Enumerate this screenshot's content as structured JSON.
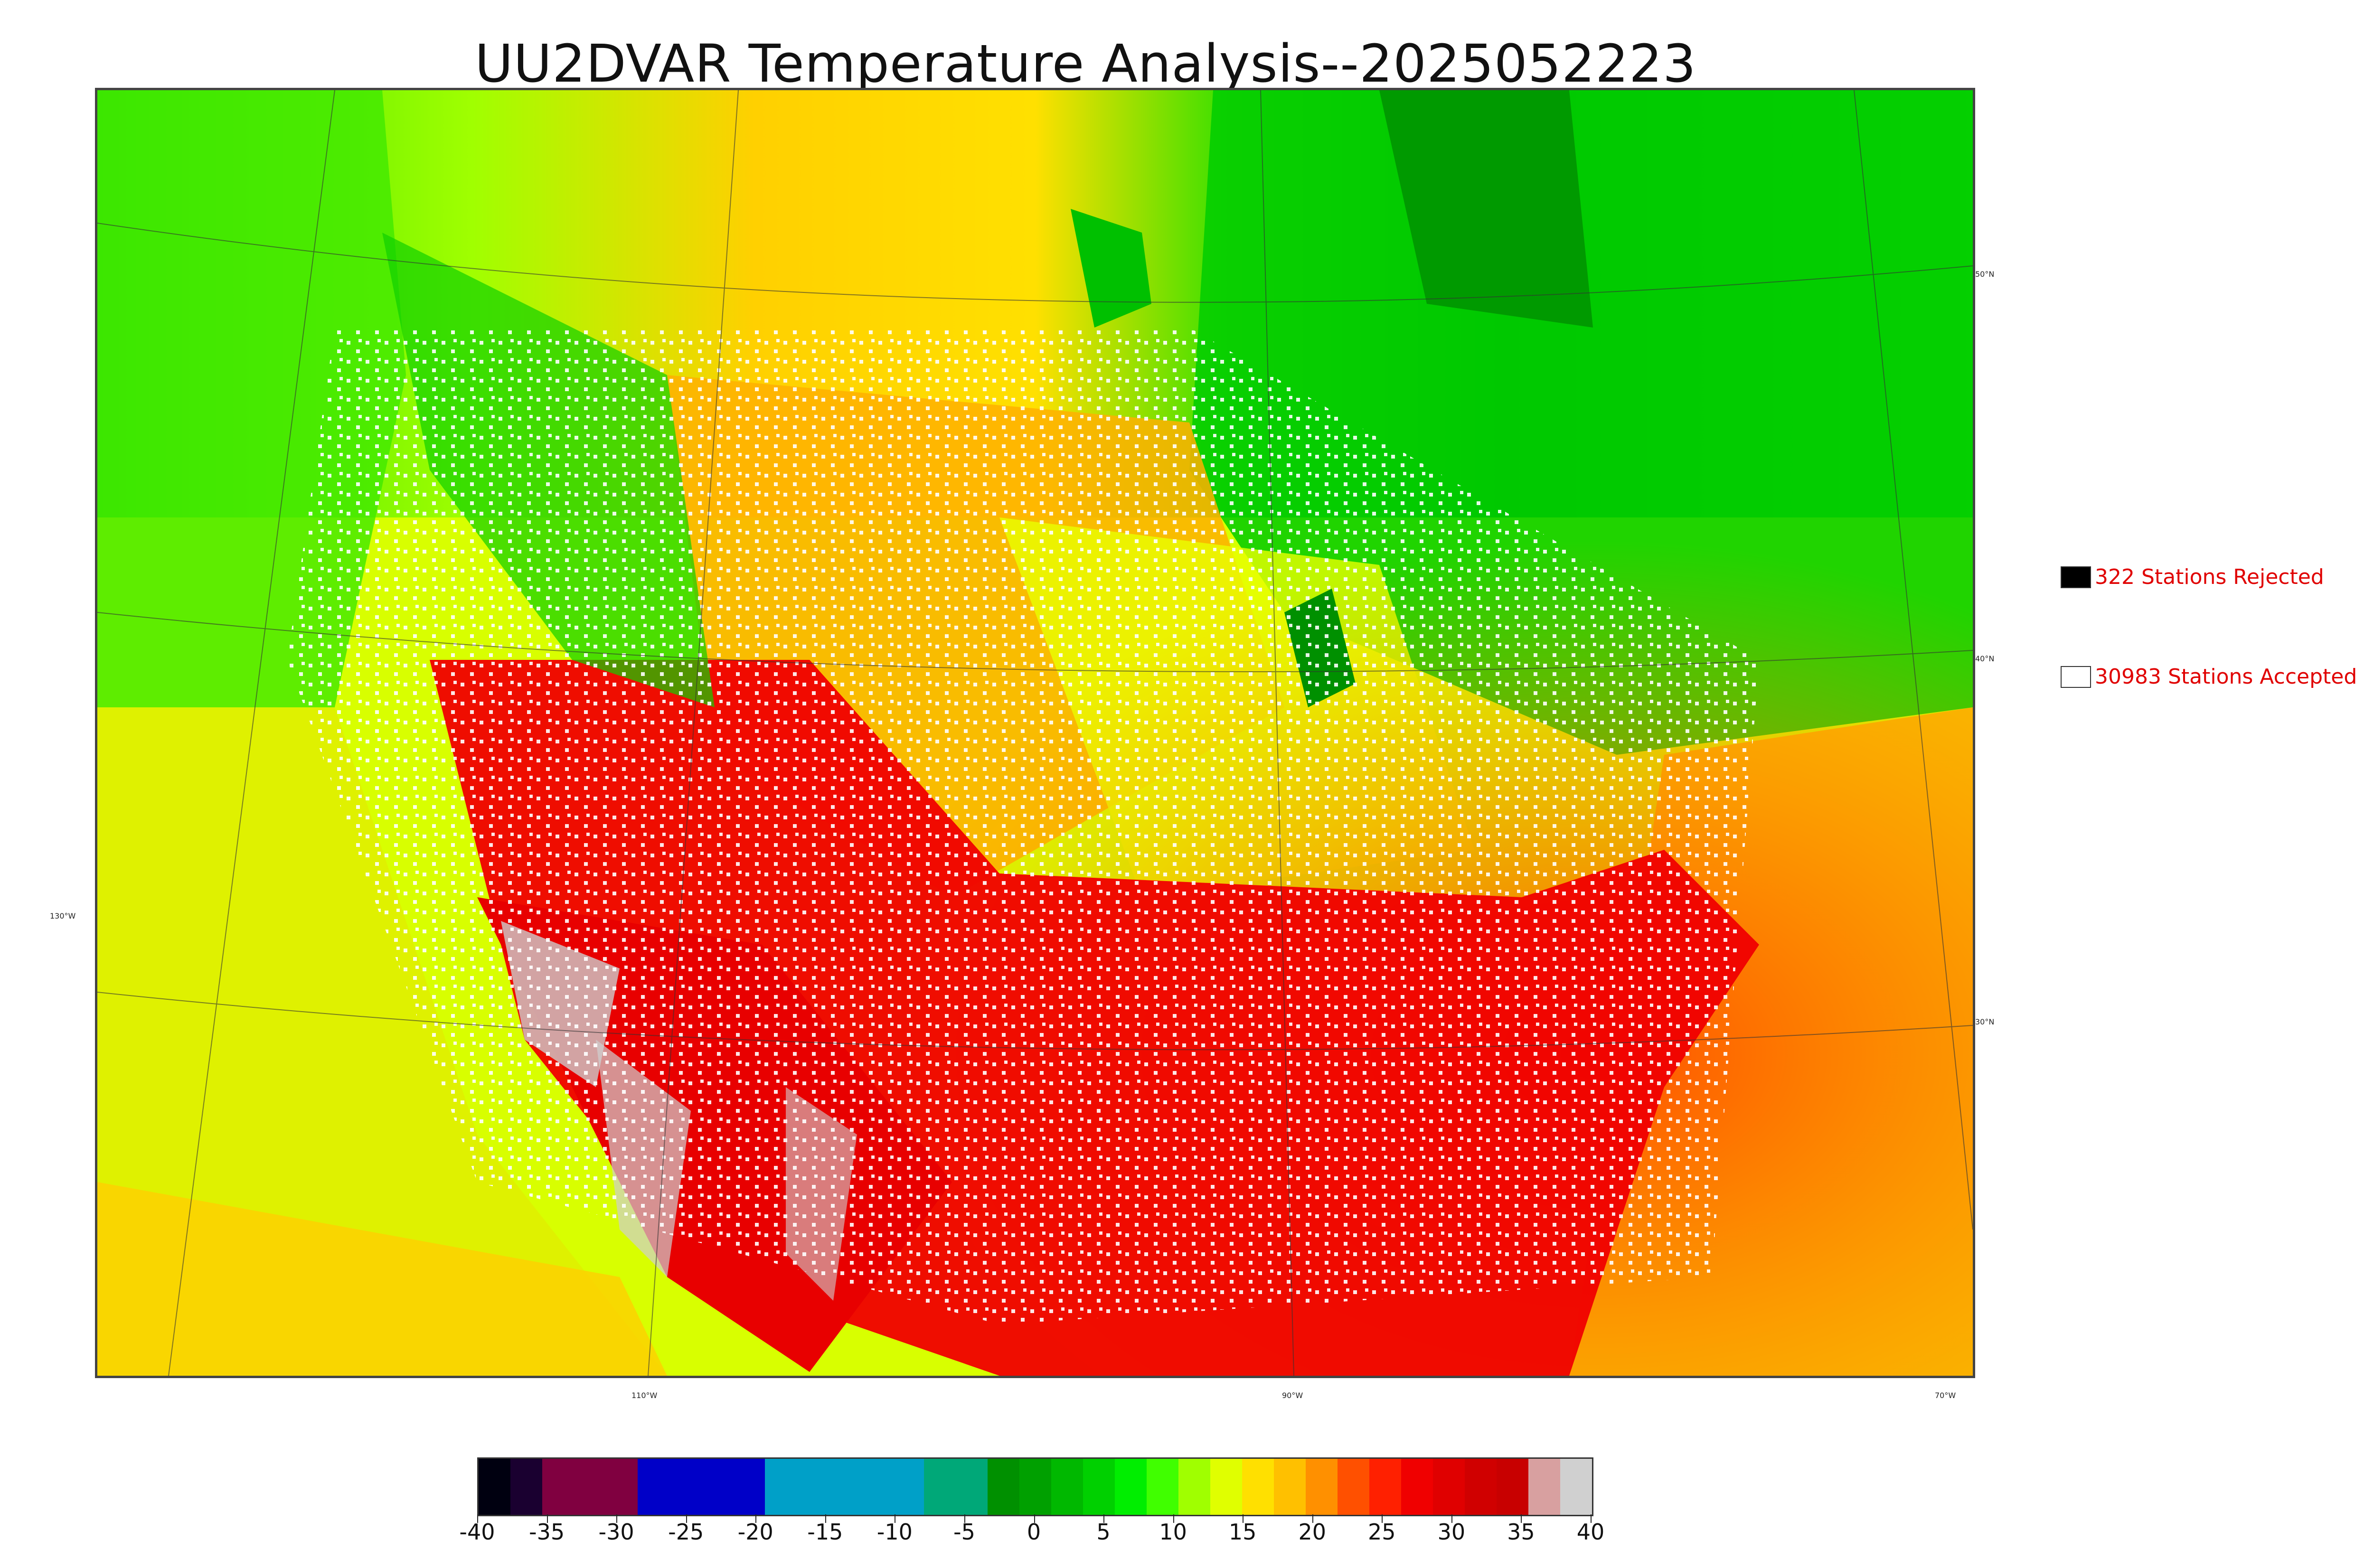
{
  "title": "UU2DVAR Temperature Analysis--2025052223",
  "legend": {
    "rejected": {
      "label": "322 Stations Rejected",
      "color": "#000000"
    },
    "accepted": {
      "label": "30983 Stations Accepted",
      "color": "#ffffff"
    }
  },
  "graticule": {
    "lat_labels": [
      "50°N",
      "40°N",
      "30°N"
    ],
    "lon_labels": [
      "130°W",
      "110°W",
      "90°W",
      "70°W"
    ]
  },
  "colorbar": {
    "ticks": [
      "-40",
      "-35",
      "-30",
      "-25",
      "-20",
      "-15",
      "-10",
      "-5",
      "0",
      "5",
      "10",
      "15",
      "20",
      "25",
      "30",
      "35",
      "40"
    ],
    "colors": [
      "#000010",
      "#1a0030",
      "#800040",
      "#800040",
      "#800040",
      "#0000c8",
      "#0000c8",
      "#0000c8",
      "#0000c8",
      "#00a0c8",
      "#00a0c8",
      "#00a0c8",
      "#00a0c8",
      "#00a0c8",
      "#00a878",
      "#00a878",
      "#009000",
      "#00a000",
      "#00b800",
      "#00d000",
      "#00ee00",
      "#40ff00",
      "#a0ff00",
      "#e0ff00",
      "#ffe000",
      "#ffc000",
      "#ff9000",
      "#ff5000",
      "#ff2000",
      "#f00000",
      "#e00000",
      "#d00000",
      "#c80000",
      "#d8a0a0",
      "#d0d0d0"
    ]
  }
}
